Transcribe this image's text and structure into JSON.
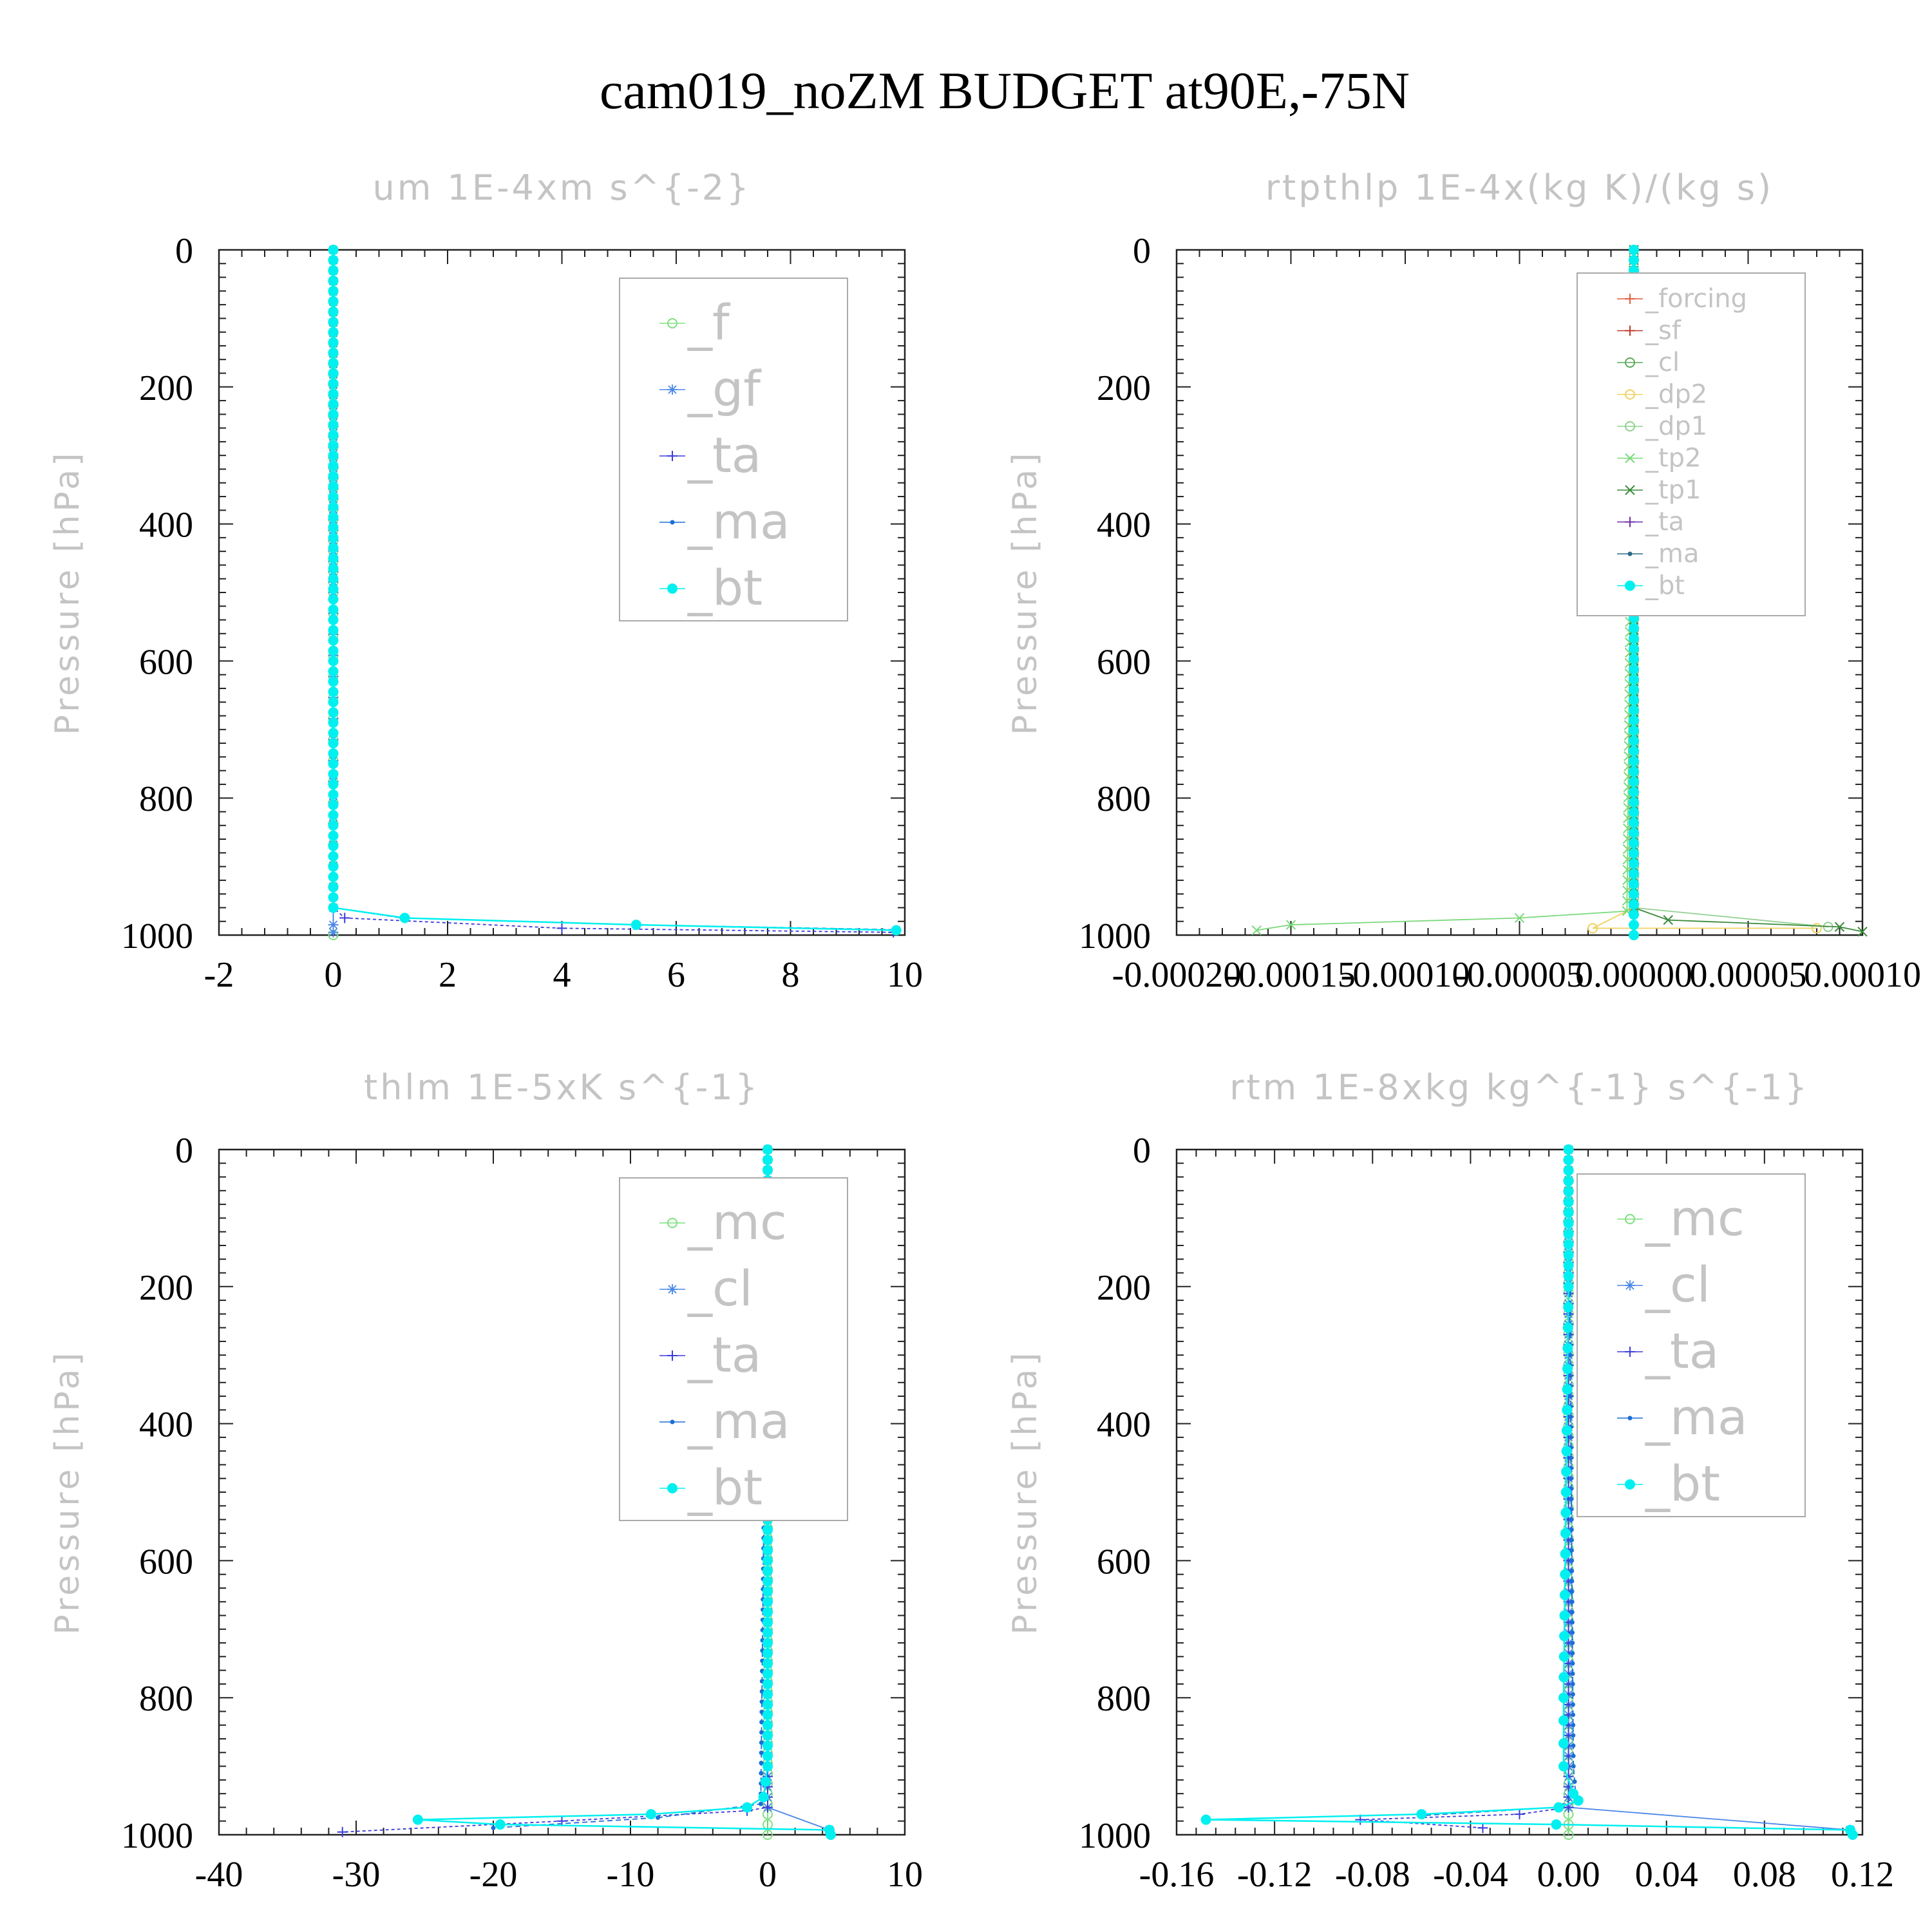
{
  "title": "cam019_noZM  BUDGET at90E,-75N",
  "chart_data": [
    {
      "type": "line",
      "title": "um  1E-4xm s^{-2}",
      "ylabel": "Pressure [hPa]",
      "xlim": [
        -2,
        10
      ],
      "ylim": [
        0,
        1000
      ],
      "y_inverted": true,
      "xticks": [
        "-2",
        "0",
        "2",
        "4",
        "6",
        "8",
        "10"
      ],
      "yticks": [
        "0",
        "200",
        "400",
        "600",
        "800",
        "1000"
      ],
      "legend": "top-right",
      "series": [
        {
          "name": "_f",
          "color": "#7fe07f",
          "marker": "circle-open",
          "points": [
            [
              0,
              0
            ],
            [
              0,
              500
            ],
            [
              0,
              960
            ],
            [
              0,
              1000
            ]
          ]
        },
        {
          "name": "_gf",
          "color": "#4a86e8",
          "marker": "asterisk",
          "points": [
            [
              0,
              0
            ],
            [
              0,
              500
            ],
            [
              0,
              960
            ],
            [
              0,
              985
            ],
            [
              0,
              996
            ]
          ]
        },
        {
          "name": "_ta",
          "color": "#3b3bdc",
          "marker": "plus",
          "points": [
            [
              0,
              0
            ],
            [
              0,
              960
            ],
            [
              0.2,
              975
            ],
            [
              4,
              990
            ],
            [
              9.8,
              996
            ]
          ]
        },
        {
          "name": "_ma",
          "color": "#1b6fd8",
          "marker": "dot",
          "points": [
            [
              0,
              0
            ],
            [
              0,
              960
            ],
            [
              1.2,
              975
            ],
            [
              5.3,
              985
            ],
            [
              9.8,
              992
            ]
          ]
        },
        {
          "name": "_bt",
          "color": "#00f0f0",
          "marker": "filled-circle",
          "points": [
            [
              0,
              0
            ],
            [
              0,
              960
            ],
            [
              1.25,
              975
            ],
            [
              5.3,
              985
            ],
            [
              9.85,
              993
            ]
          ]
        }
      ]
    },
    {
      "type": "line",
      "title": "rtpthlp  1E-4x(kg K)/(kg s)",
      "ylabel": "Pressure [hPa]",
      "xlim": [
        -0.0002,
        0.0001
      ],
      "ylim": [
        0,
        1000
      ],
      "y_inverted": true,
      "xticks": [
        "-0.00020",
        "-0.00015",
        "-0.00010",
        "-0.00005",
        "0.00000",
        "0.00005",
        "0.00010"
      ],
      "yticks": [
        "0",
        "200",
        "400",
        "600",
        "800",
        "1000"
      ],
      "legend": "top-right",
      "series": [
        {
          "name": "_forcing",
          "color": "#e05a3a",
          "marker": "plus",
          "points": [
            [
              0,
              0
            ],
            [
              0,
              1000
            ]
          ]
        },
        {
          "name": "_sf",
          "color": "#c0392b",
          "marker": "plus",
          "points": [
            [
              0,
              0
            ],
            [
              0,
              1000
            ]
          ]
        },
        {
          "name": "_cl",
          "color": "#5ba85b",
          "marker": "circle-open",
          "points": [
            [
              0,
              0
            ],
            [
              0,
              960
            ],
            [
              0,
              1000
            ]
          ]
        },
        {
          "name": "_dp2",
          "color": "#f0d060",
          "marker": "circle-open",
          "points": [
            [
              0,
              0
            ],
            [
              0,
              960
            ],
            [
              -1.8e-05,
              990
            ],
            [
              8e-05,
              990
            ]
          ]
        },
        {
          "name": "_dp1",
          "color": "#90d090",
          "marker": "circle-open",
          "points": [
            [
              0,
              0
            ],
            [
              0,
              960
            ],
            [
              8.5e-05,
              988
            ]
          ]
        },
        {
          "name": "_tp2",
          "color": "#7bd87b",
          "marker": "x",
          "points": [
            [
              0,
              0
            ],
            [
              -3e-06,
              965
            ],
            [
              -5e-05,
              975
            ],
            [
              -0.00015,
              985
            ],
            [
              -0.000165,
              993
            ]
          ]
        },
        {
          "name": "_tp1",
          "color": "#3a8a3a",
          "marker": "x",
          "points": [
            [
              0,
              0
            ],
            [
              0,
              960
            ],
            [
              1.5e-05,
              978
            ],
            [
              9e-05,
              988
            ],
            [
              0.0001,
              995
            ]
          ]
        },
        {
          "name": "_ta",
          "color": "#6b2fa8",
          "marker": "plus",
          "points": [
            [
              0,
              0
            ],
            [
              0,
              1000
            ]
          ]
        },
        {
          "name": "_ma",
          "color": "#2a6a8a",
          "marker": "dot",
          "points": [
            [
              0,
              0
            ],
            [
              0,
              1000
            ]
          ]
        },
        {
          "name": "_bt",
          "color": "#00f0f0",
          "marker": "filled-circle",
          "points": [
            [
              0,
              0
            ],
            [
              0,
              1000
            ]
          ]
        }
      ]
    },
    {
      "type": "line",
      "title": "thlm  1E-5xK s^{-1}",
      "ylabel": "Pressure [hPa]",
      "xlim": [
        -40,
        10
      ],
      "ylim": [
        0,
        1000
      ],
      "y_inverted": true,
      "xticks": [
        "-40",
        "-30",
        "-20",
        "-10",
        "0",
        "10"
      ],
      "yticks": [
        "0",
        "200",
        "400",
        "600",
        "800",
        "1000"
      ],
      "legend": "top-right",
      "series": [
        {
          "name": "_mc",
          "color": "#7fe07f",
          "marker": "circle-open",
          "points": [
            [
              0,
              0
            ],
            [
              0,
              1000
            ]
          ]
        },
        {
          "name": "_cl",
          "color": "#4a86e8",
          "marker": "asterisk",
          "points": [
            [
              0,
              0
            ],
            [
              0,
              960
            ],
            [
              4.5,
              993
            ]
          ]
        },
        {
          "name": "_ta",
          "color": "#3b3bdc",
          "marker": "plus",
          "points": [
            [
              0,
              0
            ],
            [
              0,
              960
            ],
            [
              -1.5,
              965
            ],
            [
              -15,
              980
            ],
            [
              -31,
              996
            ]
          ]
        },
        {
          "name": "_ma",
          "color": "#1b6fd8",
          "marker": "dot",
          "points": [
            [
              0,
              0
            ],
            [
              -0.5,
              955
            ],
            [
              -8,
              975
            ],
            [
              -20,
              990
            ]
          ]
        },
        {
          "name": "_bt",
          "color": "#00f0f0",
          "marker": "filled-circle",
          "points": [
            [
              0,
              0
            ],
            [
              0,
              900
            ],
            [
              -0.3,
              945
            ],
            [
              -1.5,
              960
            ],
            [
              -8.5,
              970
            ],
            [
              -25.5,
              978
            ],
            [
              -19.5,
              985
            ],
            [
              4.5,
              993
            ],
            [
              4.6,
              1000
            ]
          ]
        }
      ]
    },
    {
      "type": "line",
      "title": "rtm  1E-8xkg kg^{-1} s^{-1}",
      "ylabel": "Pressure [hPa]",
      "xlim": [
        -0.16,
        0.12
      ],
      "ylim": [
        0,
        1000
      ],
      "y_inverted": true,
      "xticks": [
        "-0.16",
        "-0.12",
        "-0.08",
        "-0.04",
        "0.00",
        "0.04",
        "0.08",
        "0.12"
      ],
      "yticks": [
        "0",
        "200",
        "400",
        "600",
        "800",
        "1000"
      ],
      "legend": "top-right",
      "series": [
        {
          "name": "_mc",
          "color": "#7fe07f",
          "marker": "circle-open",
          "points": [
            [
              0,
              0
            ],
            [
              0,
              1000
            ]
          ]
        },
        {
          "name": "_cl",
          "color": "#4a86e8",
          "marker": "asterisk",
          "points": [
            [
              0,
              0
            ],
            [
              0,
              960
            ],
            [
              0.115,
              993
            ]
          ]
        },
        {
          "name": "_ta",
          "color": "#3b3bdc",
          "marker": "plus",
          "points": [
            [
              0,
              0
            ],
            [
              0,
              960
            ],
            [
              -0.02,
              970
            ],
            [
              -0.085,
              978
            ],
            [
              -0.035,
              990
            ]
          ]
        },
        {
          "name": "_ma",
          "color": "#1b6fd8",
          "marker": "dot",
          "points": [
            [
              0,
              0
            ],
            [
              0.002,
              900
            ],
            [
              0.003,
              945
            ],
            [
              -0.005,
              960
            ],
            [
              -0.06,
              972
            ]
          ]
        },
        {
          "name": "_bt",
          "color": "#00f0f0",
          "marker": "filled-circle",
          "points": [
            [
              0,
              0
            ],
            [
              0,
              200
            ],
            [
              -0.001,
              500
            ],
            [
              -0.002,
              800
            ],
            [
              -0.002,
              900
            ],
            [
              0.002,
              940
            ],
            [
              0.004,
              950
            ],
            [
              -0.004,
              960
            ],
            [
              -0.06,
              970
            ],
            [
              -0.148,
              978
            ],
            [
              -0.005,
              985
            ],
            [
              0.115,
              993
            ],
            [
              0.116,
              1000
            ]
          ]
        }
      ]
    }
  ]
}
